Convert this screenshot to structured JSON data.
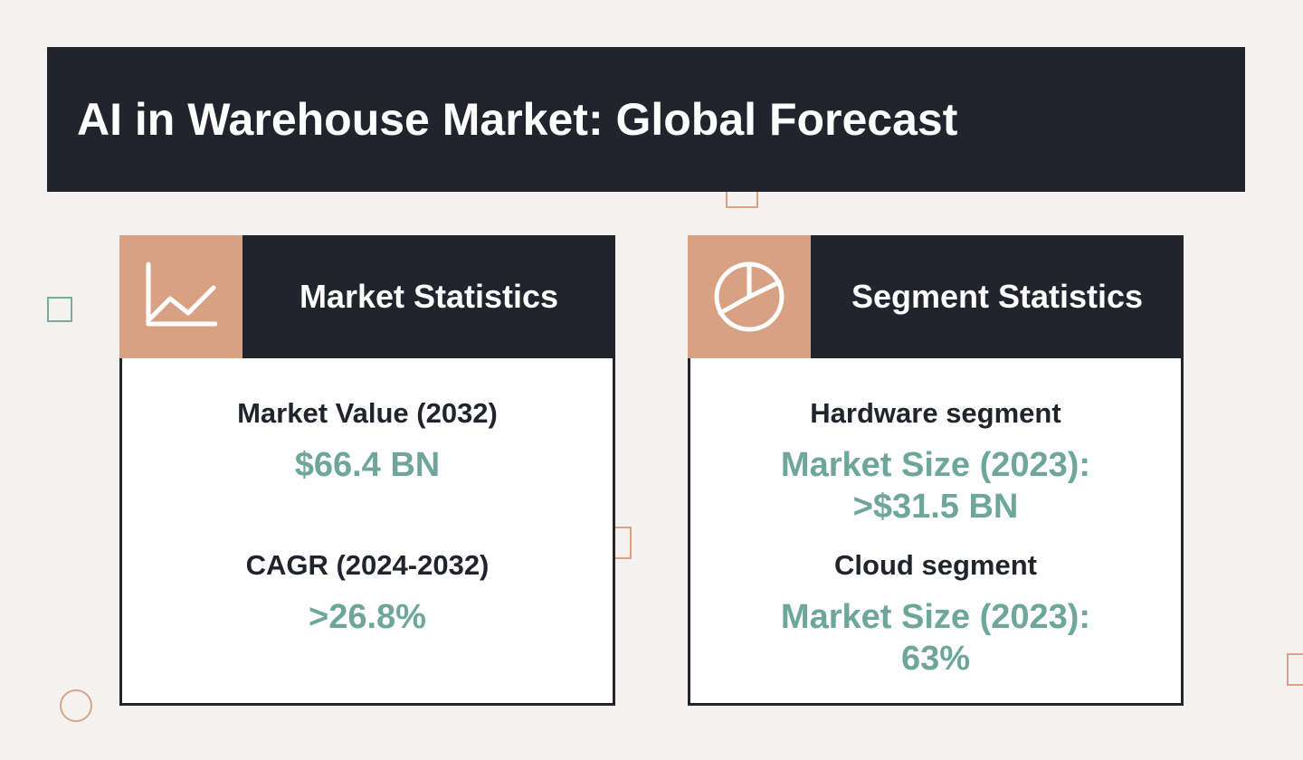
{
  "title": "AI in Warehouse Market: Global Forecast",
  "colors": {
    "dark": "#21242c",
    "accent": "#d9a184",
    "teal": "#6ea69a",
    "background": "#f3f2f0"
  },
  "market_card": {
    "icon": "line-chart-icon",
    "title": "Market Statistics",
    "stats": [
      {
        "label": "Market Value (2032)",
        "value": "$66.4 BN"
      },
      {
        "label": "CAGR (2024-2032)",
        "value": ">26.8%"
      }
    ]
  },
  "segment_card": {
    "icon": "pie-chart-icon",
    "title": "Segment Statistics",
    "stats": [
      {
        "label": "Hardware segment",
        "value_line1": "Market Size (2023):",
        "value_line2": ">$31.5 BN"
      },
      {
        "label": "Cloud segment",
        "value_line1": "Market Size (2023):",
        "value_line2": "63%"
      }
    ]
  }
}
